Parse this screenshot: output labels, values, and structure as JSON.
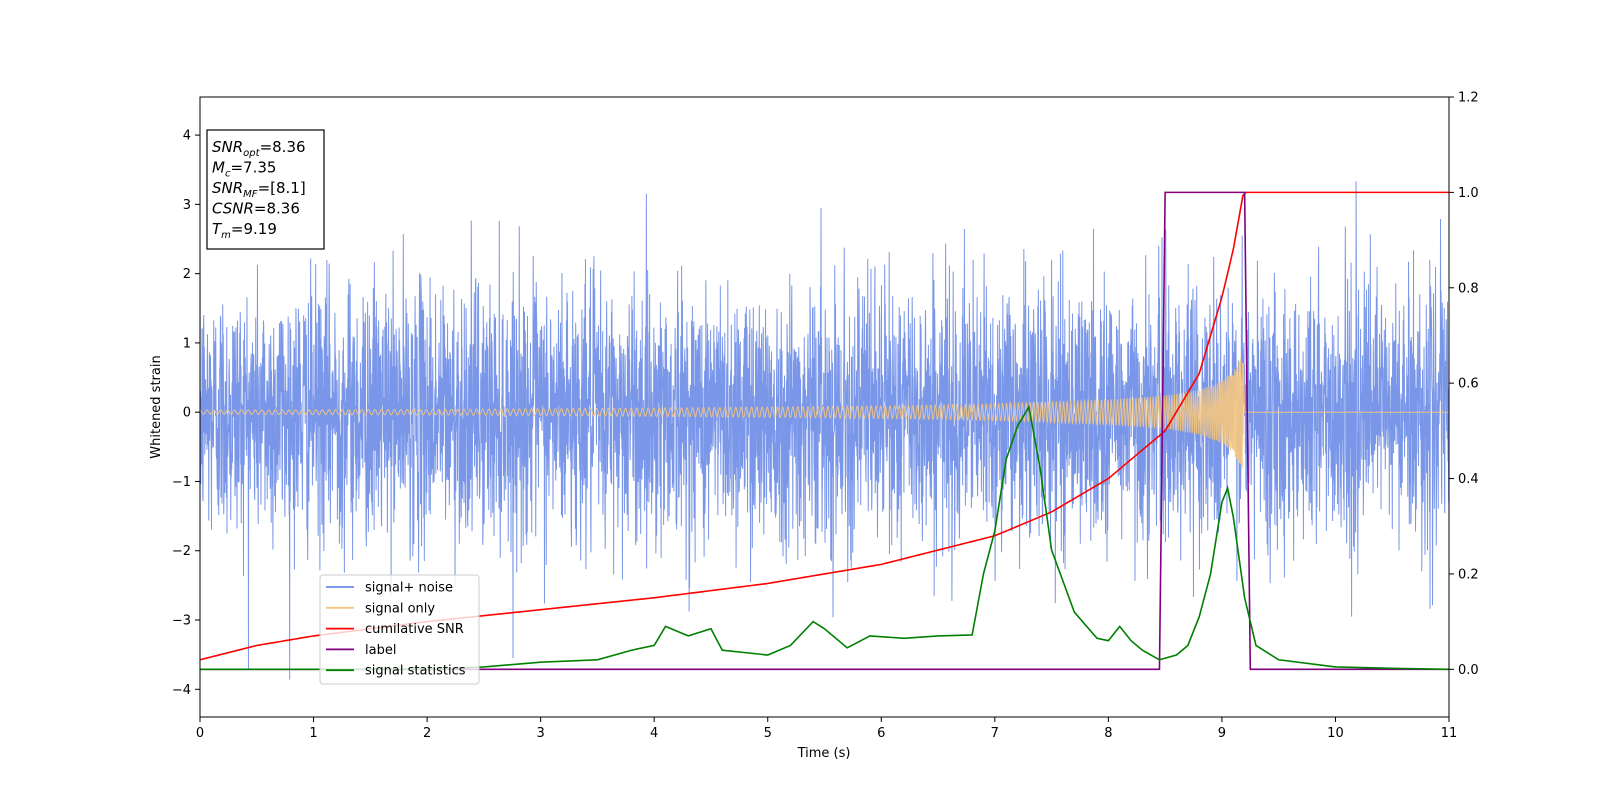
{
  "chart_data": {
    "type": "line",
    "xlabel": "Time (s)",
    "ylabel": "Whitened strain",
    "xlim": [
      0,
      11
    ],
    "ylim_left": [
      -4.4,
      4.55
    ],
    "ylim_right": [
      -0.1,
      1.2
    ],
    "xticks": [
      0,
      1,
      2,
      3,
      4,
      5,
      6,
      7,
      8,
      9,
      10,
      11
    ],
    "yticks_left": [
      -4,
      -3,
      -2,
      -1,
      0,
      1,
      2,
      3,
      4
    ],
    "yticks_right": [
      "0.0",
      "0.2",
      "0.4",
      "0.6",
      "0.8",
      "1.0",
      "1.2"
    ],
    "grid": false,
    "legend_placement": "lower-left",
    "info_box": {
      "lines": [
        {
          "base": "SNR",
          "sub": "opt",
          "value": "=8.36"
        },
        {
          "base": "M",
          "sub": "c",
          "value": "=7.35"
        },
        {
          "base": "SNR",
          "sub": "MF",
          "value": "=[8.1]"
        },
        {
          "base": "CSNR",
          "sub": "",
          "value": "=8.36"
        },
        {
          "base": "T",
          "sub": "m",
          "value": "=9.19"
        }
      ]
    },
    "series": [
      {
        "name": "signal+ noise",
        "color": "#6a8be6",
        "axis": "left",
        "kind": "noise",
        "duration": [
          0,
          11
        ],
        "amplitude_sigma": 1.0,
        "max_abs": 4.2
      },
      {
        "name": "signal only",
        "color": "#f5c67f",
        "axis": "left",
        "kind": "chirp",
        "merger_time": 9.19,
        "envelope": {
          "x": [
            0,
            2,
            4,
            6,
            7,
            8,
            8.5,
            8.8,
            9.0,
            9.1,
            9.19,
            9.2,
            11
          ],
          "y": [
            0.03,
            0.04,
            0.06,
            0.09,
            0.12,
            0.18,
            0.24,
            0.32,
            0.45,
            0.6,
            0.85,
            0,
            0
          ]
        }
      },
      {
        "name": "cumilative SNR",
        "color": "#ff0000",
        "axis": "right",
        "x": [
          0,
          0.5,
          1,
          2,
          3,
          4,
          5,
          6,
          7,
          7.5,
          8,
          8.5,
          8.8,
          9.0,
          9.1,
          9.19,
          9.2,
          11
        ],
        "y": [
          0.02,
          0.05,
          0.07,
          0.1,
          0.125,
          0.15,
          0.18,
          0.22,
          0.28,
          0.33,
          0.4,
          0.5,
          0.62,
          0.78,
          0.88,
          1.0,
          1.0,
          1.0
        ]
      },
      {
        "name": "label",
        "color": "#800080",
        "axis": "right",
        "x": [
          0,
          8.45,
          8.5,
          9.2,
          9.25,
          11
        ],
        "y": [
          0,
          0,
          1,
          1,
          0,
          0
        ]
      },
      {
        "name": "signal statistics",
        "color": "#008000",
        "axis": "right",
        "x": [
          0,
          2.0,
          2.5,
          3.0,
          3.5,
          3.8,
          4.0,
          4.1,
          4.3,
          4.5,
          4.6,
          4.8,
          5.0,
          5.2,
          5.4,
          5.5,
          5.7,
          5.9,
          6.2,
          6.5,
          6.8,
          6.9,
          7.0,
          7.1,
          7.2,
          7.3,
          7.4,
          7.5,
          7.7,
          7.9,
          8.0,
          8.1,
          8.2,
          8.3,
          8.45,
          8.6,
          8.7,
          8.8,
          8.9,
          9.0,
          9.05,
          9.1,
          9.2,
          9.3,
          9.5,
          10.0,
          10.5,
          11
        ],
        "y": [
          0,
          0.0,
          0.005,
          0.015,
          0.02,
          0.04,
          0.05,
          0.09,
          0.07,
          0.085,
          0.04,
          0.035,
          0.03,
          0.05,
          0.1,
          0.085,
          0.045,
          0.07,
          0.065,
          0.07,
          0.072,
          0.2,
          0.29,
          0.44,
          0.51,
          0.55,
          0.42,
          0.25,
          0.12,
          0.065,
          0.06,
          0.09,
          0.06,
          0.04,
          0.02,
          0.03,
          0.05,
          0.11,
          0.2,
          0.35,
          0.38,
          0.32,
          0.15,
          0.05,
          0.02,
          0.005,
          0.002,
          0.0
        ]
      }
    ]
  }
}
